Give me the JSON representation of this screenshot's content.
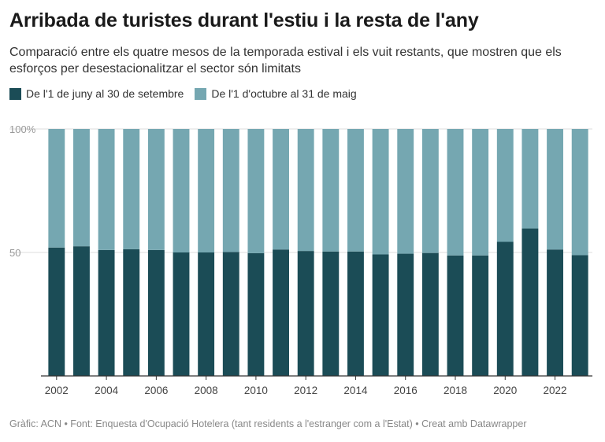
{
  "title": "Arribada de turistes durant l'estiu i la resta de l'any",
  "subtitle": "Comparació entre els quatre mesos de la temporada estival i els vuit restants, que mostren que els esforços per desestacionalitzar el sector són limitats",
  "footer": "Gràfic: ACN • Font: Enquesta d'Ocupació Hotelera (tant residents a l'estranger com a l'Estat) • Creat amb Datawrapper",
  "colors": {
    "summer": "#1b4c56",
    "rest": "#75a7b1",
    "grid": "#dddddd",
    "baseline": "#333333"
  },
  "chart_data": {
    "type": "bar",
    "stacked": true,
    "categories": [
      2002,
      2003,
      2004,
      2005,
      2006,
      2007,
      2008,
      2009,
      2010,
      2011,
      2012,
      2013,
      2014,
      2015,
      2016,
      2017,
      2018,
      2019,
      2020,
      2021,
      2022,
      2023
    ],
    "x_tick_labels": [
      "2002",
      "2004",
      "2006",
      "2008",
      "2010",
      "2012",
      "2014",
      "2016",
      "2018",
      "2020",
      "2022"
    ],
    "y_tick_labels": [
      "100%",
      "50"
    ],
    "y_ticks": [
      100,
      50
    ],
    "ylim": [
      0,
      100
    ],
    "grid": true,
    "legend_position": "top-left",
    "series": [
      {
        "name": "De l'1 de juny al 30 de setembre",
        "values": [
          52,
          52.5,
          51,
          51.3,
          51,
          50,
          50,
          50.2,
          49.7,
          51.2,
          50.6,
          50.4,
          50.4,
          49.2,
          49.5,
          49.8,
          48.8,
          48.8,
          54.3,
          59.7,
          51.2,
          48.9
        ]
      },
      {
        "name": "De l'1 d'octubre al 31 de maig",
        "values": [
          48,
          47.5,
          49,
          48.7,
          49,
          50,
          50,
          49.8,
          50.3,
          48.8,
          49.4,
          49.6,
          49.6,
          50.8,
          50.5,
          50.2,
          51.2,
          51.2,
          45.7,
          40.3,
          48.8,
          51.1
        ]
      }
    ]
  }
}
